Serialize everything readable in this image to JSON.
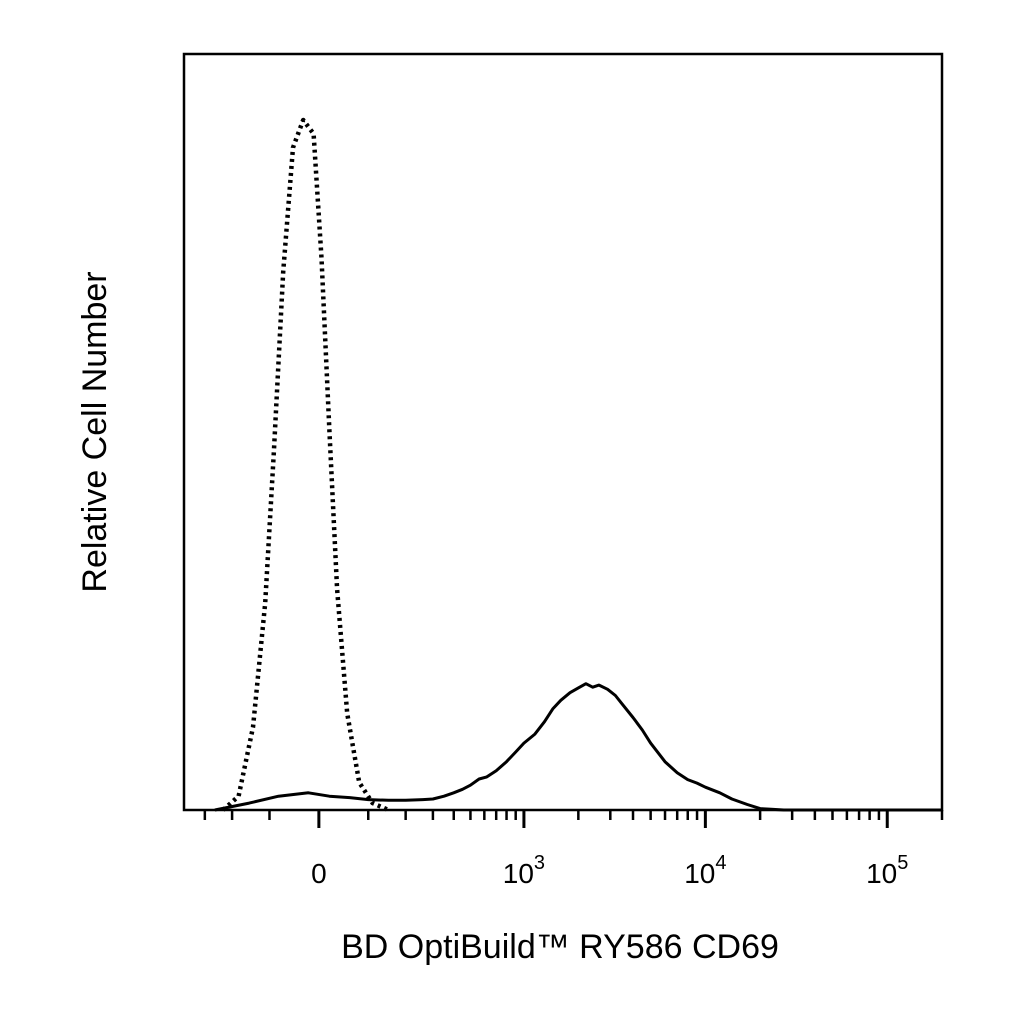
{
  "chart_data": {
    "type": "line",
    "title": "",
    "xlabel": "BD OptiBuild™ RY586 CD69",
    "ylabel": "Relative Cell Number",
    "x_scale": "biexponential",
    "xlim": [
      -400,
      200000
    ],
    "ylim": [
      0,
      100
    ],
    "grid": false,
    "legend": "none",
    "x_tick_labels": [
      {
        "value": 0,
        "base": "0",
        "exp": ""
      },
      {
        "value": 1000,
        "base": "10",
        "exp": "3"
      },
      {
        "value": 10000,
        "base": "10",
        "exp": "4"
      },
      {
        "value": 100000,
        "base": "10",
        "exp": "5"
      }
    ],
    "series": [
      {
        "style": "dotted",
        "color": "#000000",
        "x": [
          -230,
          -180,
          -140,
          -110,
          -90,
          -70,
          -50,
          -30,
          -10,
          5,
          20,
          35,
          55,
          80,
          110,
          150
        ],
        "y": [
          0,
          2,
          12,
          30,
          52,
          78,
          96,
          100,
          98,
          80,
          55,
          32,
          14,
          4,
          1,
          0
        ]
      },
      {
        "style": "solid",
        "color": "#000000",
        "x": [
          -260,
          -150,
          -80,
          -20,
          20,
          60,
          100,
          150,
          200,
          260,
          300,
          350,
          400,
          450,
          500,
          560,
          620,
          700,
          800,
          900,
          1000,
          1150,
          1300,
          1450,
          1600,
          1800,
          2000,
          2200,
          2400,
          2600,
          2900,
          3200,
          3500,
          4000,
          4500,
          5000,
          6000,
          7000,
          8000,
          9000,
          10000,
          12000,
          14000,
          17000,
          20000,
          23000,
          27000,
          30000,
          40000,
          60000,
          100000,
          200000
        ],
        "y": [
          0,
          1,
          2,
          2.5,
          2,
          1.8,
          1.5,
          1.4,
          1.4,
          1.5,
          1.6,
          2,
          2.5,
          3,
          3.6,
          4.5,
          4.8,
          5.7,
          7,
          8.4,
          9.7,
          11,
          12.8,
          14.7,
          15.9,
          17,
          17.7,
          18.3,
          17.8,
          18.1,
          17.5,
          16.6,
          15.3,
          13.4,
          11.6,
          9.7,
          7,
          5.4,
          4.4,
          3.9,
          3.3,
          2.5,
          1.6,
          0.8,
          0.2,
          0.1,
          0,
          0,
          0,
          0,
          0,
          0
        ]
      }
    ]
  }
}
